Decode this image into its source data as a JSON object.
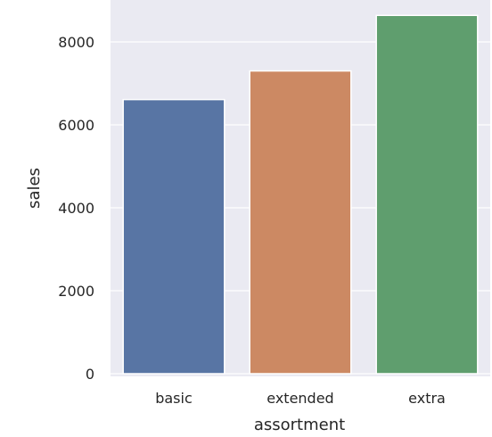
{
  "chart_data": {
    "type": "bar",
    "title": "",
    "xlabel": "assortment",
    "ylabel": "sales",
    "categories": [
      "basic",
      "extended",
      "extra"
    ],
    "values": [
      6610,
      7300,
      8640
    ],
    "ylim": [
      0,
      9000
    ],
    "yticks": [
      0,
      2000,
      4000,
      6000,
      8000
    ],
    "ytick_labels": [
      "0",
      "2000",
      "4000",
      "6000",
      "8000"
    ],
    "grid": true,
    "colors": {
      "background": "#eaeaf2",
      "grid": "#ffffff",
      "bars": [
        "#5875a4",
        "#cc8963",
        "#5f9e6e"
      ]
    }
  }
}
